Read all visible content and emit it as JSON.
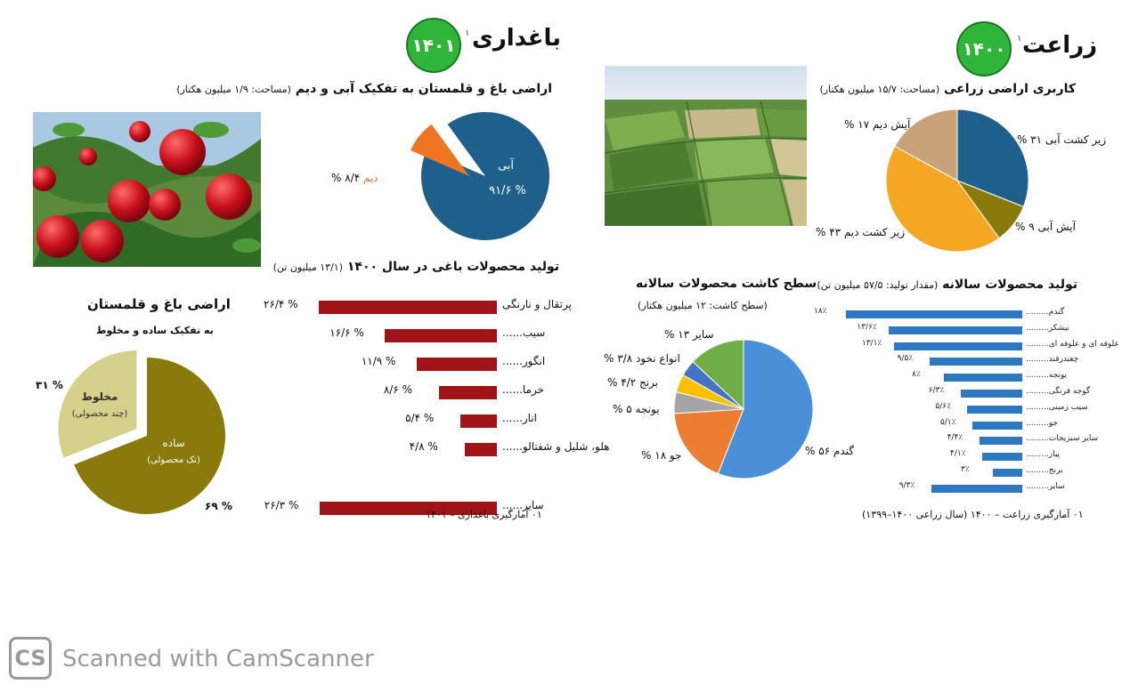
{
  "left_panel": {
    "title": "باغداری",
    "year": "۱۴۰۱",
    "note_mark": "۱",
    "footnote": "۰۱ آمارگیری باغداری – ۱۴۰۱"
  },
  "right_panel": {
    "title": "زراعت",
    "year": "۱۴۰۰",
    "note_mark": "۱",
    "footnote": "۰۱ آمارگیری زراعت – ۱۴۰۰ (سال زراعی ۱۴۰۰–۱۳۹۹)"
  },
  "scanner": {
    "text": "Scanned with CamScanner",
    "logo": "CS"
  },
  "colors": {
    "green_badge": "#2fb539",
    "teal": "#1f5f8b",
    "orange": "#ee7623",
    "red_bar": "#a01418",
    "blue_bar": "#2e78c2",
    "olive": "#8a7a0c",
    "olive_light": "#d6d08d"
  },
  "chart_data": [
    {
      "id": "orchard_water",
      "type": "pie",
      "title": "اراضی باغ و قلمستان به تفکیک آبی و دیم",
      "subtitle": "(مساحت: ۱/۹ میلیون هکتار)",
      "slices": [
        {
          "name": "آبی",
          "value": 91.6,
          "label": "۹۱/۶ %",
          "color": "#1f5f8b"
        },
        {
          "name": "دیم",
          "value": 8.4,
          "label": "۸/۴ %",
          "color": "#ee7623"
        }
      ]
    },
    {
      "id": "orchard_type",
      "type": "pie",
      "title": "اراضی باغ و قلمستان",
      "subtitle": "به تفکیک ساده و مخلوط",
      "slices": [
        {
          "name": "ساده",
          "note": "(تک محصولی)",
          "value": 69,
          "label": "۶۹ %",
          "color": "#8a7a0c"
        },
        {
          "name": "مخلوط",
          "note": "(چند محصولی)",
          "value": 31,
          "label": "۳۱ %",
          "color": "#d6d08d"
        }
      ]
    },
    {
      "id": "orchard_products",
      "type": "bar",
      "title": "تولید محصولات باغی در سال ۱۴۰۰",
      "subtitle": "(۱۳/۱ میلیون تن)",
      "categories": [
        "پرتقال و نارنگی",
        "سیب",
        "انگور",
        "خرما",
        "انار",
        "هلو، شلیل و شفتالو",
        "سایر"
      ],
      "values": [
        26.4,
        16.6,
        11.9,
        8.6,
        5.4,
        4.8,
        26.3
      ],
      "value_labels": [
        "۲۶/۴ %",
        "۱۶/۶ %",
        "۱۱/۹ %",
        "۸/۶ %",
        "۵/۴ %",
        "۴/۸ %",
        "۲۶/۳ %"
      ]
    },
    {
      "id": "farm_land_use",
      "type": "pie",
      "title": "کاربری اراضی زراعی",
      "subtitle": "(مساحت: ۱۵/۷ میلیون هکتار)",
      "slices": [
        {
          "name": "زیر کشت آبی",
          "value": 31,
          "label": "زیر کشت آبی ۳۱ %",
          "color": "#1f5f8b"
        },
        {
          "name": "آیش آبی",
          "value": 9,
          "label": "آیش آبی ۹ %",
          "color": "#8a7a0c"
        },
        {
          "name": "زیر کشت دیم",
          "value": 43,
          "label": "زیر کشت دیم ۴۳ %",
          "color": "#f5a623"
        },
        {
          "name": "آیش دیم",
          "value": 17,
          "label": "آیش دیم ۱۷ %",
          "color": "#c9a27a"
        }
      ]
    },
    {
      "id": "crop_area",
      "type": "pie",
      "title": "سطح کاشت محصولات سالانه",
      "subtitle": "(سطح کاشت: ۱۲ میلیون هکتار)",
      "slices": [
        {
          "name": "گندم",
          "value": 56,
          "label": "گندم ۵۶ %",
          "color": "#4a90d9"
        },
        {
          "name": "جو",
          "value": 18,
          "label": "جو ۱۸ %",
          "color": "#ed7d31"
        },
        {
          "name": "یونجه",
          "value": 5,
          "label": "یونجه ۵ %",
          "color": "#a5a5a5"
        },
        {
          "name": "برنج",
          "value": 4.2,
          "label": "برنج ۴/۲ %",
          "color": "#ffc000"
        },
        {
          "name": "انواع نخود",
          "value": 3.8,
          "label": "انواع نخود ۳/۸ %",
          "color": "#4472c4"
        },
        {
          "name": "سایر",
          "value": 13,
          "label": "سایر ۱۳ %",
          "color": "#70ad47"
        }
      ]
    },
    {
      "id": "crop_production",
      "type": "bar",
      "title": "تولید محصولات سالانه",
      "subtitle": "(مقدار تولید: ۵۷/۵ میلیون تن)",
      "categories": [
        "گندم",
        "نیشکر",
        "ذرت علوفه ای و علوفه ای",
        "چغندرقند",
        "یونجه",
        "گوجه فرنگی",
        "سیب زمینی",
        "جو",
        "سایر سبزیجات",
        "پیاز",
        "برنج",
        "سایر"
      ],
      "values": [
        18,
        13.6,
        13.1,
        9.5,
        8,
        6.3,
        5.6,
        5.1,
        4.4,
        4.1,
        3,
        9.3
      ],
      "value_labels": [
        "۱۸٪",
        "۱۳/۶٪",
        "۱۳/۱٪",
        "۹/۵٪",
        "۸٪",
        "۶/۳٪",
        "۵/۶٪",
        "۵/۱٪",
        "۴/۴٪",
        "۴/۱٪",
        "۳٪",
        "۹/۳٪"
      ]
    }
  ]
}
